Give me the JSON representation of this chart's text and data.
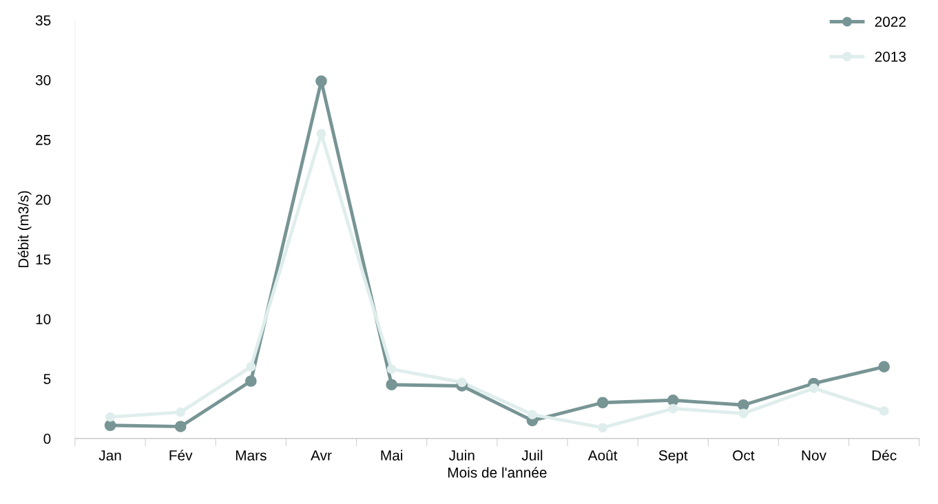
{
  "chart_data": {
    "type": "line",
    "xlabel": "Mois de l'année",
    "ylabel": "Débit (m3/s)",
    "categories": [
      "Jan",
      "Fév",
      "Mars",
      "Avr",
      "Mai",
      "Juin",
      "Juil",
      "Août",
      "Sept",
      "Oct",
      "Nov",
      "Déc"
    ],
    "series": [
      {
        "name": "2022",
        "color": "#779594",
        "values": [
          1.1,
          1.0,
          4.8,
          29.9,
          4.5,
          4.4,
          1.5,
          3.0,
          3.2,
          2.8,
          4.6,
          6.0
        ]
      },
      {
        "name": "2013",
        "color": "#dfeeec",
        "values": [
          1.8,
          2.2,
          6.0,
          25.5,
          5.8,
          4.7,
          2.0,
          0.9,
          2.5,
          2.1,
          4.2,
          2.3
        ]
      }
    ],
    "ylim": [
      0,
      35
    ],
    "yticks": [
      0,
      5,
      10,
      15,
      20,
      25,
      30,
      35
    ],
    "grid": false,
    "legend": "top right",
    "marker": "circle",
    "line_style": "solid"
  }
}
